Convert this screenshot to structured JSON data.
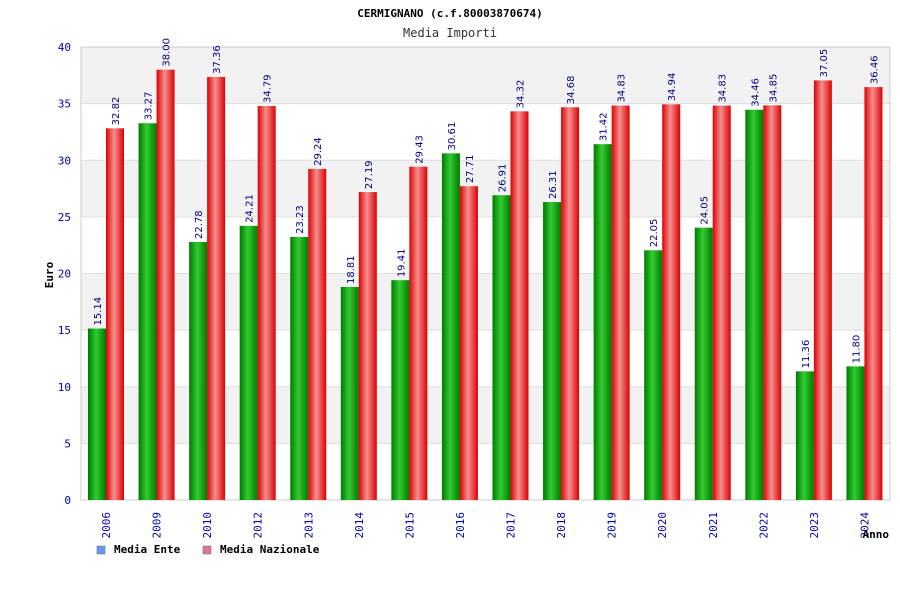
{
  "chart_data": {
    "type": "bar",
    "title": "CERMIGNANO (c.f.80003870674)",
    "subtitle": "Media Importi",
    "ylabel": "Euro",
    "xlabel": "Anno",
    "ylim": [
      0,
      40
    ],
    "yticks": [
      0,
      5,
      10,
      15,
      20,
      25,
      30,
      35,
      40
    ],
    "categories": [
      "2006",
      "2009",
      "2010",
      "2012",
      "2013",
      "2014",
      "2015",
      "2016",
      "2017",
      "2018",
      "2019",
      "2020",
      "2021",
      "2022",
      "2023",
      "2024"
    ],
    "series": [
      {
        "name": "Media Ente",
        "color": "#00aa00",
        "values": [
          15.14,
          33.27,
          22.78,
          24.21,
          23.23,
          18.81,
          19.41,
          30.61,
          26.91,
          26.31,
          31.42,
          22.05,
          24.05,
          34.46,
          11.36,
          11.8
        ],
        "labels": [
          "15.14",
          "33.27",
          "22.78",
          "24.21",
          "23.23",
          "18.81",
          "19.41",
          "30.61",
          "26.91",
          "26.31",
          "31.42",
          "22.05",
          "24.05",
          "34.46",
          "11.36",
          "11.80"
        ]
      },
      {
        "name": "Media Nazionale",
        "color": "#ee1111",
        "values": [
          32.82,
          38.0,
          37.36,
          34.79,
          29.24,
          27.19,
          29.43,
          27.71,
          34.32,
          34.68,
          34.83,
          34.94,
          34.83,
          34.85,
          37.05,
          36.46
        ],
        "labels": [
          "32.82",
          "38.00",
          "37.36",
          "34.79",
          "29.24",
          "27.19",
          "29.43",
          "27.71",
          "34.32",
          "34.68",
          "34.83",
          "34.94",
          "34.83",
          "34.85",
          "37.05",
          "36.46"
        ]
      }
    ],
    "legend": [
      {
        "label": "Media Ente",
        "color": "#6699ee"
      },
      {
        "label": "Media Nazionale",
        "color": "#dd7799"
      }
    ],
    "legend_position": "bottom-left",
    "grid": true,
    "band_colors": [
      "#f2f2f2",
      "#ffffff"
    ]
  }
}
